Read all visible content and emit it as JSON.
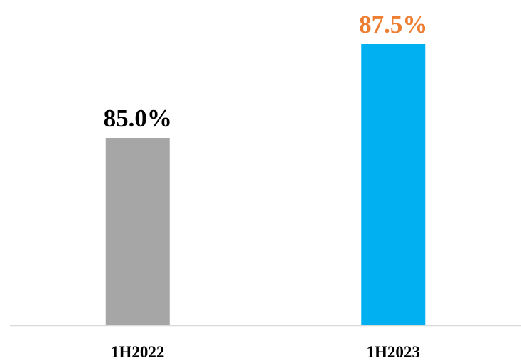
{
  "chart_data": {
    "type": "bar",
    "categories": [
      "1H2022",
      "1H2023"
    ],
    "values": [
      85.0,
      87.5
    ],
    "value_labels": [
      "85.0%",
      "87.5%"
    ],
    "colors": [
      "#a6a6a6",
      "#00b0f0"
    ],
    "label_colors": [
      "#000000",
      "#ed7d31"
    ],
    "ylim": [
      80,
      88
    ]
  }
}
